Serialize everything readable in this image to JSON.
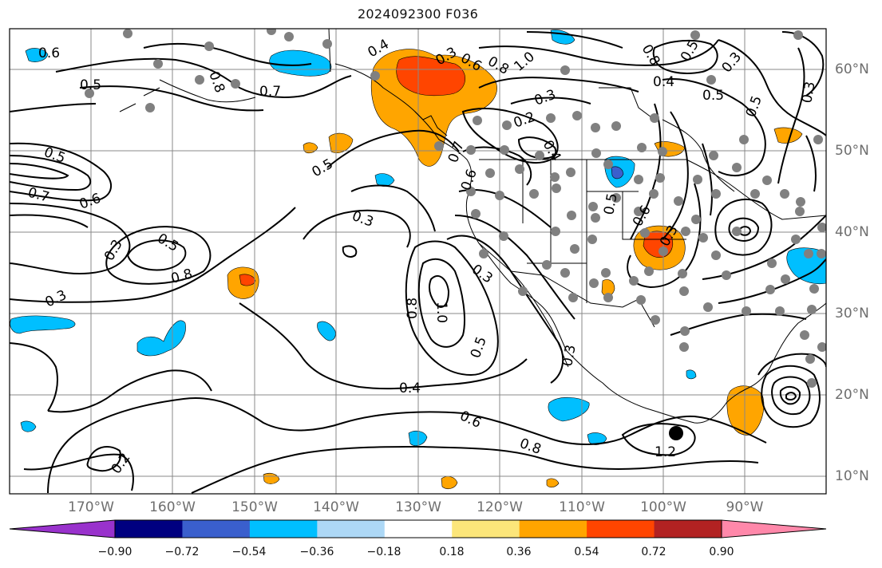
{
  "title": "2024092300 F036",
  "lon_labels": [
    "170°W",
    "160°W",
    "150°W",
    "140°W",
    "130°W",
    "120°W",
    "110°W",
    "100°W",
    "90°W"
  ],
  "lat_labels": [
    "60°N",
    "50°N",
    "40°N",
    "30°N",
    "20°N",
    "10°N"
  ],
  "colorbar": {
    "tick_labels": [
      "−0.90",
      "−0.72",
      "−0.54",
      "−0.36",
      "−0.18",
      "0.18",
      "0.36",
      "0.54",
      "0.72",
      "0.90"
    ],
    "colors": [
      "#9932CC",
      "#000080",
      "#3A5FCD",
      "#00BFFF",
      "#ADD8F6",
      "#FFFFFF",
      "#FCE67A",
      "#FFA500",
      "#FF4500",
      "#B22222",
      "#FF88AA"
    ]
  },
  "contour_labels": [
    "0.6",
    "0.5",
    "0.8",
    "0.7",
    "0.3",
    "0.4",
    "0.6",
    "0.8",
    "1.0",
    "0.2",
    "0.3",
    "0.5",
    "0.7",
    "0.6",
    "0.5",
    "0.3",
    "0.3",
    "0.5",
    "0.8",
    "0.3",
    "0.2",
    "1.0",
    "0.8",
    "0.5",
    "0.3",
    "0.3",
    "0.4",
    "0.6",
    "0.8",
    "1.2",
    "0.5",
    "0.6",
    "0.3",
    "0.4",
    "0.6",
    "0.7",
    "0.8",
    "0.5",
    "0.4",
    "0.5",
    "0.3",
    "0.5",
    "0.3"
  ]
}
